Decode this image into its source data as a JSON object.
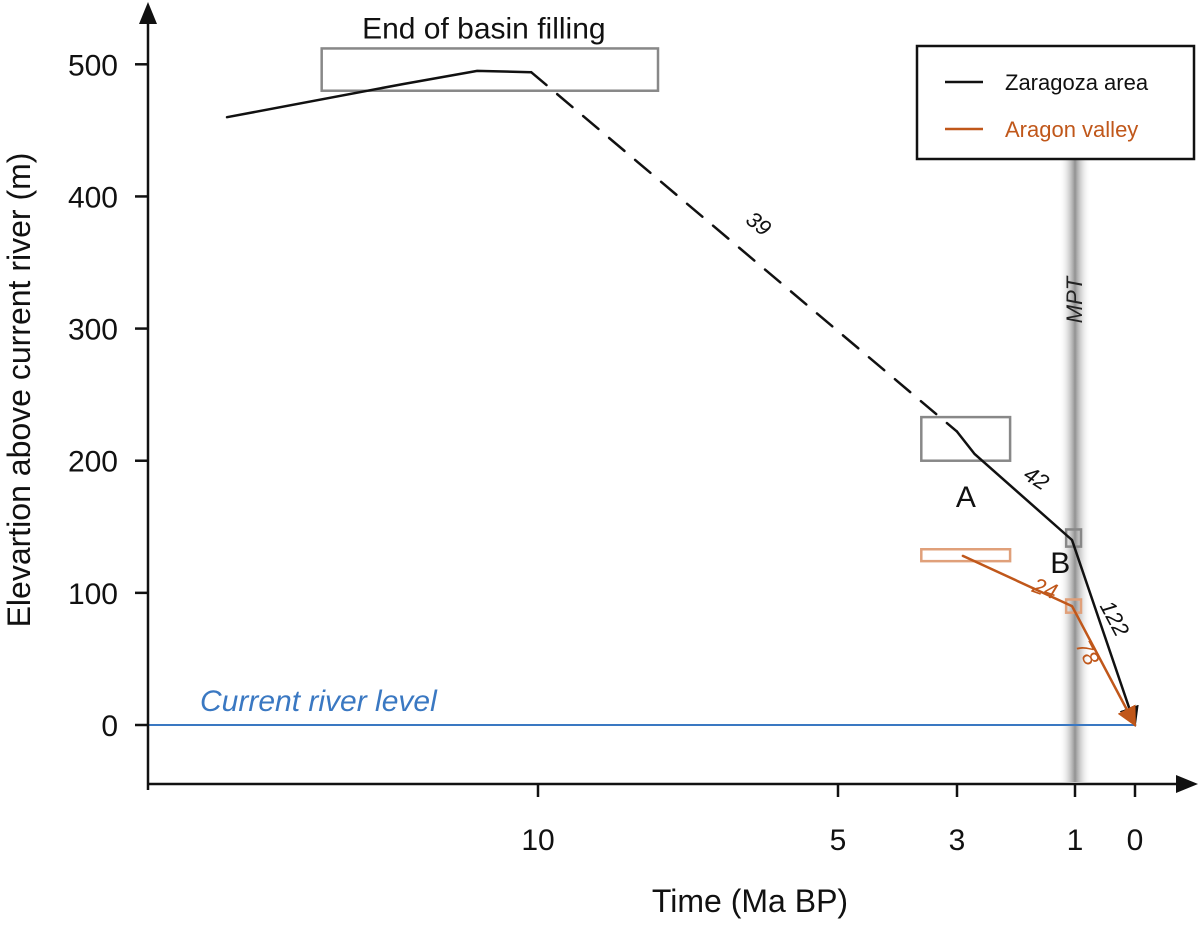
{
  "chart_data": {
    "type": "line",
    "xlabel": "Time (Ma BP)",
    "ylabel": "Elevartion above current river (m)",
    "x_ticks": [
      {
        "value": 10,
        "label": "10"
      },
      {
        "value": 5,
        "label": "5"
      },
      {
        "value": 3,
        "label": "3"
      },
      {
        "value": 1,
        "label": "1"
      },
      {
        "value": 0,
        "label": "0"
      }
    ],
    "y_ticks": [
      {
        "value": 500,
        "label": "500"
      },
      {
        "value": 400,
        "label": "400"
      },
      {
        "value": 300,
        "label": "300"
      },
      {
        "value": 200,
        "label": "200"
      },
      {
        "value": 100,
        "label": "100"
      },
      {
        "value": 0,
        "label": "0"
      }
    ],
    "x_scale": "nonlinear",
    "ylim": [
      -45,
      545
    ],
    "grid": false,
    "legend_position": "top-right",
    "legend": [
      {
        "label": "Zaragoza area",
        "color": "#111111"
      },
      {
        "label": "Aragon valley",
        "color": "#c0571a"
      }
    ],
    "series": [
      {
        "name": "Zaragoza area",
        "color": "#111111",
        "segments": [
          {
            "style": "solid",
            "points": [
              [
                14.6,
                460
              ],
              [
                12,
                485
              ],
              [
                10.9,
                495
              ],
              [
                10.1,
                494
              ]
            ]
          },
          {
            "style": "dashed",
            "points": [
              [
                10.1,
                494
              ],
              [
                3.0,
                222
              ]
            ]
          },
          {
            "style": "solid",
            "points": [
              [
                3.0,
                222
              ],
              [
                2.7,
                205
              ],
              [
                1.05,
                140
              ],
              [
                0,
                0
              ]
            ]
          }
        ]
      },
      {
        "name": "Aragon valley",
        "color": "#c0571a",
        "segments": [
          {
            "style": "solid",
            "points": [
              [
                2.9,
                128
              ],
              [
                1.05,
                90
              ],
              [
                0,
                0
              ]
            ]
          }
        ]
      }
    ],
    "reference_line": {
      "label": "Current river level",
      "y": 0,
      "color": "#3a78c2"
    },
    "band": {
      "label": "MPT",
      "x": 1.0
    },
    "boxes": [
      {
        "label": "End of basin filling",
        "x": [
          13.2,
          8.0
        ],
        "y": [
          480,
          512
        ],
        "color": "#888888"
      },
      {
        "x": [
          3.6,
          2.1
        ],
        "y": [
          200,
          233
        ],
        "color": "#888888"
      },
      {
        "x": [
          1.15,
          0.9
        ],
        "y": [
          135,
          148
        ],
        "color": "#888888"
      },
      {
        "x": [
          3.6,
          2.1
        ],
        "y": [
          124,
          133
        ],
        "color": "#e0a07a"
      },
      {
        "x": [
          1.15,
          0.9
        ],
        "y": [
          85,
          95
        ],
        "color": "#e0a07a"
      }
    ],
    "annotations": [
      {
        "text": "39",
        "x": 6.4,
        "y": 375,
        "rotation": 38,
        "color": "#111111"
      },
      {
        "text": "42",
        "x": 1.72,
        "y": 182,
        "rotation": 32,
        "color": "#111111"
      },
      {
        "text": "122",
        "x": 0.45,
        "y": 78,
        "rotation": 62,
        "color": "#111111"
      },
      {
        "text": "24",
        "x": 1.55,
        "y": 98,
        "rotation": 20,
        "color": "#c0571a"
      },
      {
        "text": "78",
        "x": 0.9,
        "y": 52,
        "rotation": 62,
        "color": "#c0571a"
      },
      {
        "text": "A",
        "x": 2.85,
        "y": 165,
        "rotation": 0,
        "color": "#111111"
      },
      {
        "text": "B",
        "x": 1.25,
        "y": 115,
        "rotation": 0,
        "color": "#111111"
      }
    ]
  }
}
